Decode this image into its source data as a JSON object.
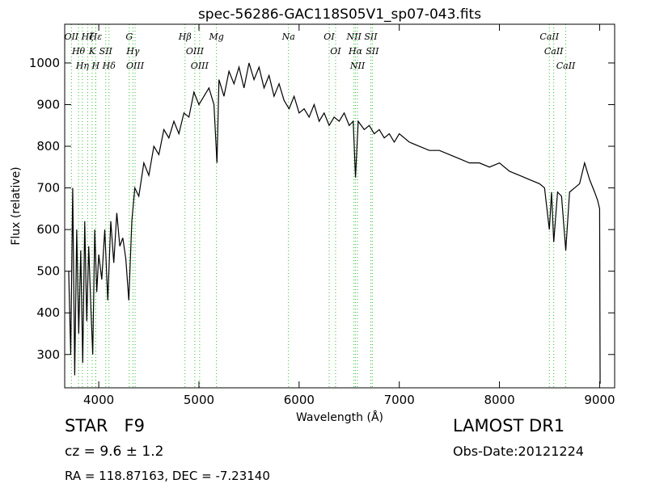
{
  "chart_data": {
    "type": "line",
    "title": "spec-56286-GAC118S05V1_sp07-043.fits",
    "x_label": "Wavelength (Å)",
    "y_label": "Flux (relative)",
    "color": "#000000",
    "line_color": "#33bb33",
    "xlim": [
      3660,
      9150
    ],
    "ylim": [
      220,
      1093
    ],
    "xticks": [
      4000,
      5000,
      6000,
      7000,
      8000,
      9000
    ],
    "yticks": [
      300,
      400,
      500,
      600,
      700,
      800,
      900,
      1000
    ],
    "x": [
      3700,
      3720,
      3740,
      3760,
      3780,
      3800,
      3820,
      3840,
      3860,
      3880,
      3900,
      3920,
      3940,
      3960,
      3980,
      4000,
      4030,
      4060,
      4090,
      4120,
      4150,
      4180,
      4210,
      4240,
      4270,
      4300,
      4330,
      4360,
      4400,
      4450,
      4500,
      4550,
      4600,
      4650,
      4700,
      4750,
      4800,
      4850,
      4900,
      4950,
      5000,
      5050,
      5100,
      5150,
      5180,
      5200,
      5250,
      5300,
      5350,
      5400,
      5450,
      5500,
      5550,
      5600,
      5650,
      5700,
      5750,
      5800,
      5850,
      5900,
      5950,
      6000,
      6050,
      6100,
      6150,
      6200,
      6250,
      6300,
      6350,
      6400,
      6450,
      6500,
      6540,
      6563,
      6590,
      6650,
      6700,
      6750,
      6800,
      6850,
      6900,
      6950,
      7000,
      7100,
      7200,
      7300,
      7400,
      7500,
      7600,
      7700,
      7800,
      7900,
      8000,
      8100,
      8200,
      8300,
      8400,
      8450,
      8498,
      8520,
      8542,
      8580,
      8620,
      8662,
      8700,
      8750,
      8800,
      8850,
      8900,
      8950,
      8980,
      9000,
      9005
    ],
    "values": [
      500,
      300,
      700,
      250,
      600,
      350,
      550,
      280,
      620,
      380,
      560,
      420,
      300,
      600,
      450,
      540,
      480,
      600,
      430,
      620,
      520,
      640,
      560,
      580,
      530,
      430,
      620,
      700,
      680,
      760,
      730,
      800,
      780,
      840,
      820,
      860,
      830,
      880,
      870,
      930,
      900,
      920,
      940,
      900,
      760,
      960,
      920,
      980,
      950,
      990,
      940,
      1000,
      960,
      990,
      940,
      970,
      920,
      950,
      910,
      890,
      920,
      880,
      890,
      870,
      900,
      860,
      880,
      850,
      870,
      860,
      880,
      850,
      860,
      725,
      860,
      840,
      850,
      830,
      840,
      820,
      830,
      810,
      830,
      810,
      800,
      790,
      790,
      780,
      770,
      760,
      760,
      750,
      760,
      740,
      730,
      720,
      710,
      700,
      600,
      690,
      570,
      690,
      680,
      550,
      690,
      700,
      710,
      760,
      720,
      690,
      670,
      650,
      230
    ],
    "lines": [
      {
        "wavelength": 3727,
        "label": "OII"
      },
      {
        "wavelength": 3798,
        "label": "Hθ"
      },
      {
        "wavelength": 3836,
        "label": "Hη"
      },
      {
        "wavelength": 3889,
        "label": "Hζ"
      },
      {
        "wavelength": 3934,
        "label": "K"
      },
      {
        "wavelength": 3969,
        "label": "H"
      },
      {
        "wavelength": 3970,
        "label": "Hε"
      },
      {
        "wavelength": 4070,
        "label": "SII"
      },
      {
        "wavelength": 4102,
        "label": "Hδ"
      },
      {
        "wavelength": 4304,
        "label": "G"
      },
      {
        "wavelength": 4341,
        "label": "Hγ"
      },
      {
        "wavelength": 4363,
        "label": "OIII"
      },
      {
        "wavelength": 4861,
        "label": "Hβ"
      },
      {
        "wavelength": 4959,
        "label": "OIII"
      },
      {
        "wavelength": 5007,
        "label": "OIII"
      },
      {
        "wavelength": 5175,
        "label": "Mg"
      },
      {
        "wavelength": 5894,
        "label": "Na"
      },
      {
        "wavelength": 6300,
        "label": "OI"
      },
      {
        "wavelength": 6364,
        "label": "OI"
      },
      {
        "wavelength": 6548,
        "label": "NII"
      },
      {
        "wavelength": 6563,
        "label": "Hα"
      },
      {
        "wavelength": 6583,
        "label": "NII"
      },
      {
        "wavelength": 6716,
        "label": "SII"
      },
      {
        "wavelength": 6731,
        "label": "SII"
      },
      {
        "wavelength": 8498,
        "label": "CaII"
      },
      {
        "wavelength": 8542,
        "label": "CaII"
      },
      {
        "wavelength": 8662,
        "label": "CaII"
      }
    ]
  },
  "info": {
    "object": "STAR   F9",
    "redshift": "cz = 9.6 ± 1.2",
    "coords": "RA = 118.87163, DEC = -7.23140",
    "survey": "LAMOST DR1",
    "date": "Obs-Date:20121224"
  }
}
